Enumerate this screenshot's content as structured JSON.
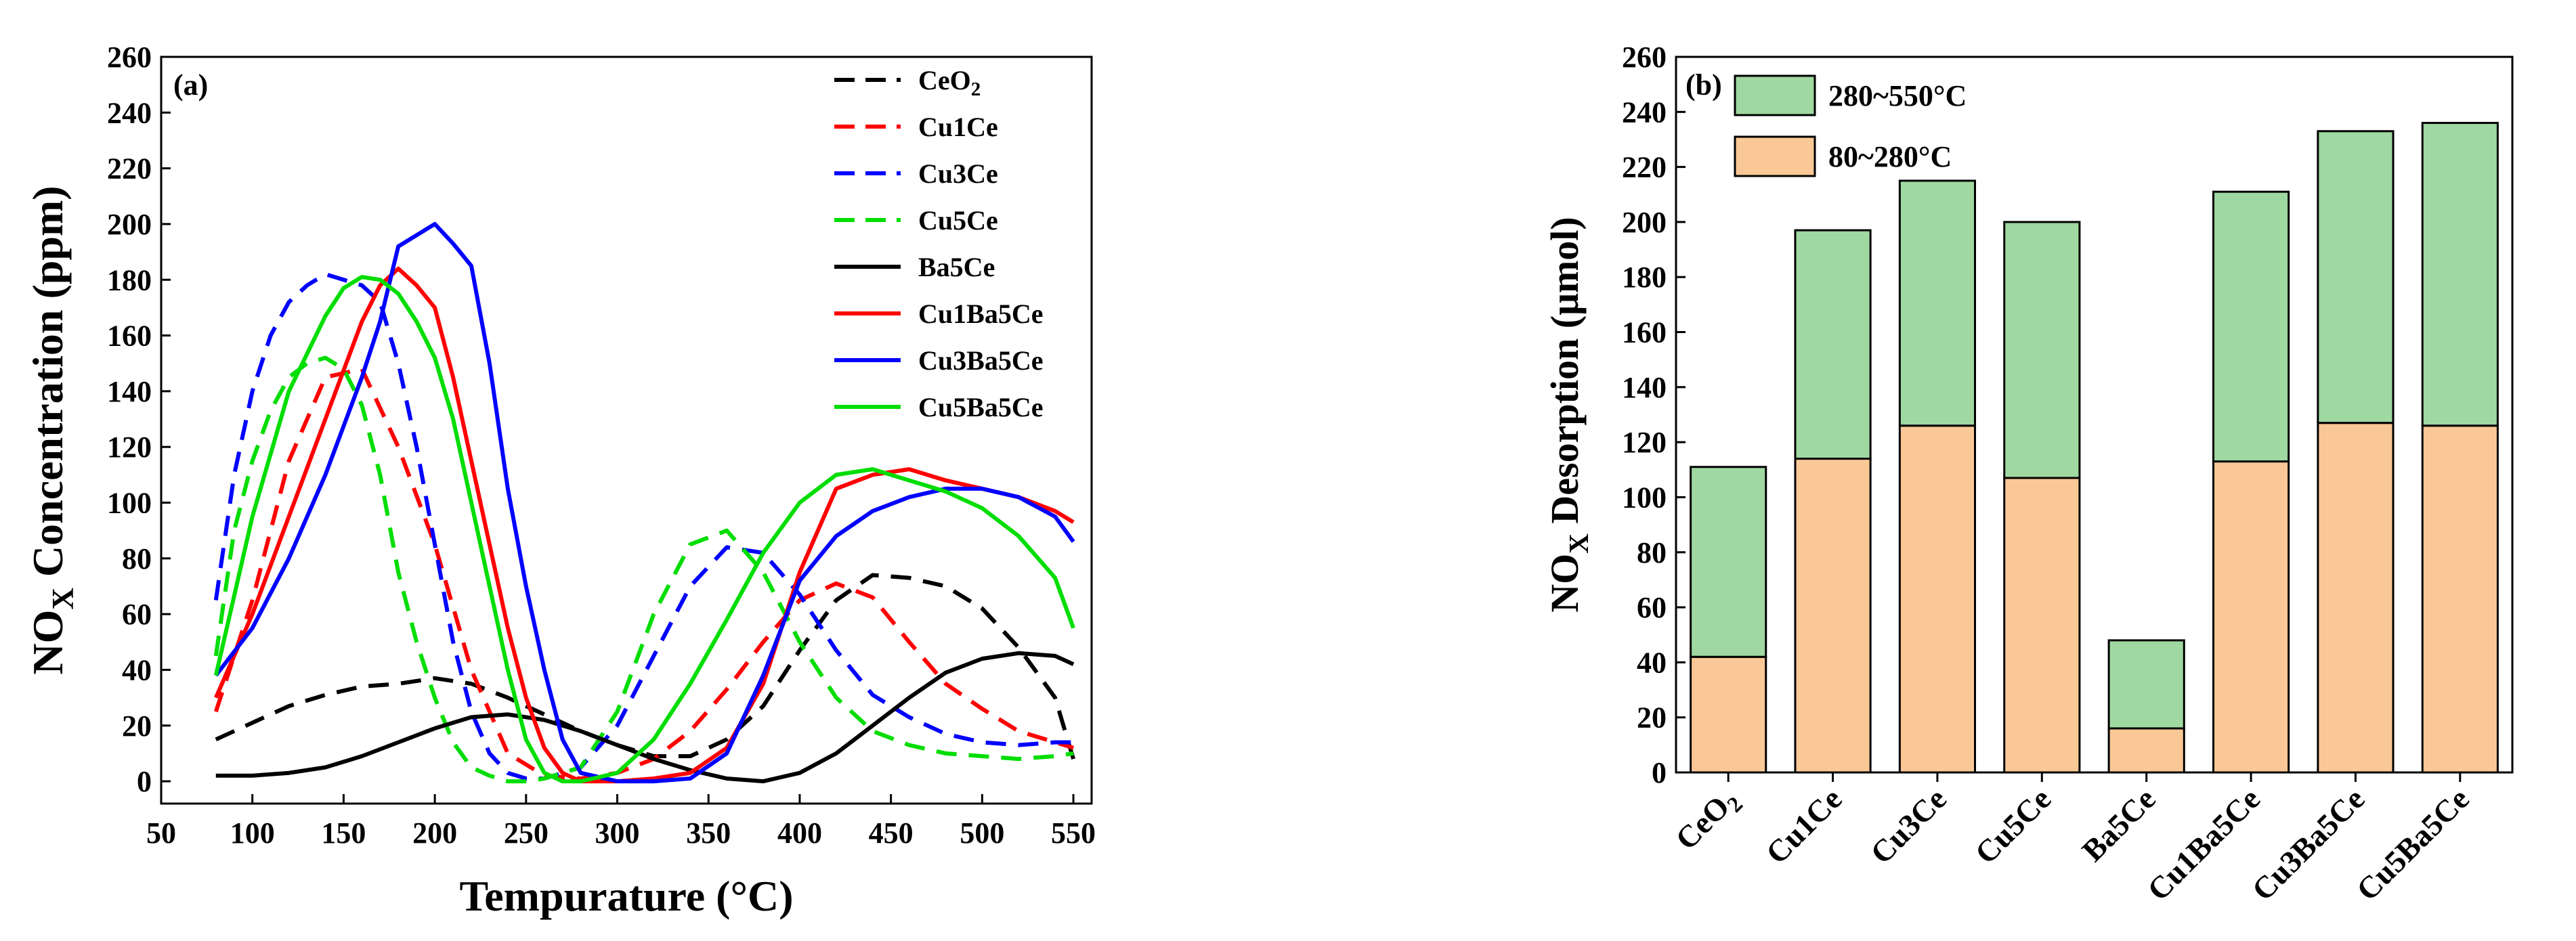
{
  "chart_data": [
    {
      "panel": "(a)",
      "type": "line",
      "xlabel": "Tempurature (°C)",
      "ylabel": "NOx Concentration (ppm)",
      "xlim": [
        50,
        560
      ],
      "ylim": [
        -8,
        260
      ],
      "xticks": [
        50,
        100,
        150,
        200,
        250,
        300,
        350,
        400,
        450,
        500,
        550
      ],
      "yticks": [
        0,
        20,
        40,
        60,
        80,
        100,
        120,
        140,
        160,
        180,
        200,
        220,
        240,
        260
      ],
      "legend_position": "top-right",
      "series": [
        {
          "name": "CeO2",
          "color": "#000000",
          "dash": true,
          "x": [
            80,
            100,
            120,
            140,
            160,
            180,
            200,
            220,
            240,
            260,
            280,
            300,
            320,
            340,
            360,
            380,
            400,
            420,
            440,
            460,
            480,
            500,
            520,
            540,
            550
          ],
          "y": [
            15,
            21,
            27,
            31,
            34,
            35,
            37,
            35,
            30,
            24,
            18,
            13,
            9,
            9,
            15,
            27,
            47,
            65,
            74,
            73,
            70,
            62,
            48,
            30,
            8
          ]
        },
        {
          "name": "Cu1Ce",
          "color": "#ff0000",
          "dash": true,
          "x": [
            80,
            100,
            120,
            140,
            160,
            180,
            200,
            220,
            240,
            260,
            280,
            300,
            320,
            340,
            360,
            380,
            400,
            420,
            440,
            460,
            480,
            500,
            520,
            540,
            550
          ],
          "y": [
            25,
            65,
            115,
            145,
            148,
            120,
            85,
            40,
            10,
            2,
            1,
            3,
            8,
            18,
            33,
            50,
            65,
            71,
            66,
            50,
            35,
            26,
            18,
            14,
            12
          ]
        },
        {
          "name": "Cu3Ce",
          "color": "#0000ff",
          "dash": true,
          "x": [
            80,
            90,
            100,
            110,
            120,
            130,
            140,
            150,
            160,
            170,
            180,
            190,
            200,
            210,
            220,
            230,
            240,
            250,
            260,
            280,
            300,
            320,
            340,
            360,
            380,
            400,
            420,
            440,
            460,
            480,
            500,
            520,
            540,
            550
          ],
          "y": [
            65,
            110,
            140,
            160,
            172,
            178,
            182,
            180,
            178,
            172,
            150,
            120,
            85,
            50,
            25,
            10,
            3,
            1,
            1,
            5,
            20,
            45,
            70,
            84,
            82,
            67,
            47,
            31,
            23,
            17,
            14,
            13,
            14,
            14
          ]
        },
        {
          "name": "Cu5Ce",
          "color": "#00dd00",
          "dash": true,
          "x": [
            80,
            90,
            100,
            110,
            120,
            130,
            140,
            150,
            160,
            170,
            180,
            190,
            200,
            210,
            220,
            230,
            240,
            250,
            260,
            280,
            300,
            320,
            340,
            360,
            380,
            400,
            420,
            440,
            460,
            480,
            500,
            520,
            540,
            550
          ],
          "y": [
            45,
            90,
            115,
            133,
            145,
            150,
            152,
            148,
            135,
            110,
            75,
            50,
            30,
            14,
            5,
            2,
            0,
            0,
            1,
            5,
            25,
            60,
            85,
            90,
            75,
            50,
            30,
            18,
            13,
            10,
            9,
            8,
            9,
            10
          ]
        },
        {
          "name": "Ba5Ce",
          "color": "#000000",
          "dash": false,
          "x": [
            80,
            100,
            120,
            140,
            160,
            180,
            200,
            220,
            240,
            260,
            280,
            300,
            320,
            340,
            360,
            380,
            400,
            420,
            440,
            460,
            480,
            500,
            520,
            540,
            550
          ],
          "y": [
            2,
            2,
            3,
            5,
            9,
            14,
            19,
            23,
            24,
            22,
            18,
            13,
            8,
            4,
            1,
            0,
            3,
            10,
            20,
            30,
            39,
            44,
            46,
            45,
            42
          ]
        },
        {
          "name": "Cu1Ba5Ce",
          "color": "#ff0000",
          "dash": false,
          "x": [
            80,
            100,
            120,
            140,
            160,
            170,
            180,
            190,
            200,
            210,
            220,
            230,
            240,
            250,
            260,
            270,
            280,
            290,
            300,
            320,
            340,
            360,
            380,
            400,
            420,
            440,
            460,
            480,
            500,
            520,
            540,
            550
          ],
          "y": [
            30,
            60,
            95,
            130,
            165,
            178,
            184,
            178,
            170,
            145,
            115,
            85,
            55,
            30,
            12,
            3,
            0,
            0,
            0,
            1,
            3,
            12,
            35,
            75,
            105,
            110,
            112,
            108,
            105,
            102,
            97,
            93
          ]
        },
        {
          "name": "Cu3Ba5Ce",
          "color": "#0000ff",
          "dash": false,
          "x": [
            80,
            100,
            120,
            140,
            160,
            170,
            180,
            190,
            200,
            210,
            220,
            230,
            240,
            250,
            260,
            270,
            280,
            300,
            320,
            340,
            360,
            380,
            400,
            420,
            440,
            460,
            480,
            500,
            520,
            540,
            550
          ],
          "y": [
            38,
            55,
            80,
            110,
            145,
            165,
            192,
            196,
            200,
            193,
            185,
            150,
            105,
            70,
            40,
            15,
            3,
            0,
            0,
            1,
            10,
            38,
            72,
            88,
            97,
            102,
            105,
            105,
            102,
            95,
            86
          ]
        },
        {
          "name": "Cu5Ba5Ce",
          "color": "#00dd00",
          "dash": false,
          "x": [
            80,
            100,
            120,
            140,
            150,
            160,
            170,
            180,
            190,
            200,
            210,
            220,
            230,
            240,
            250,
            260,
            270,
            280,
            300,
            320,
            340,
            360,
            380,
            400,
            420,
            440,
            460,
            480,
            500,
            520,
            540,
            550
          ],
          "y": [
            38,
            95,
            140,
            167,
            177,
            181,
            180,
            175,
            165,
            152,
            130,
            100,
            70,
            40,
            15,
            3,
            0,
            0,
            3,
            15,
            35,
            58,
            82,
            100,
            110,
            112,
            108,
            104,
            98,
            88,
            73,
            55
          ]
        }
      ]
    },
    {
      "panel": "(b)",
      "type": "bar",
      "stacked": true,
      "ylabel": "NOx Desorption (μmol)",
      "ylim": [
        0,
        260
      ],
      "yticks": [
        0,
        20,
        40,
        60,
        80,
        100,
        120,
        140,
        160,
        180,
        200,
        220,
        240,
        260
      ],
      "categories": [
        "CeO2",
        "Cu1Ce",
        "Cu3Ce",
        "Cu5Ce",
        "Ba5Ce",
        "Cu1Ba5Ce",
        "Cu3Ba5Ce",
        "Cu5Ba5Ce"
      ],
      "legend_position": "top-left",
      "series": [
        {
          "name": "80~280°C",
          "color": "#f9c896",
          "values": [
            42,
            114,
            126,
            107,
            16,
            113,
            127,
            126
          ]
        },
        {
          "name": "280~550°C",
          "color": "#9fd8a0",
          "values": [
            69,
            83,
            89,
            93,
            32,
            98,
            106,
            110
          ]
        }
      ]
    }
  ]
}
